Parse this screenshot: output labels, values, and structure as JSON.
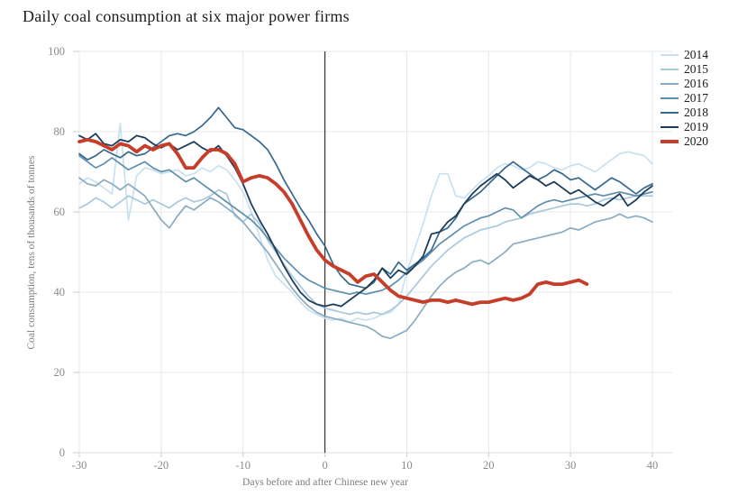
{
  "title": "Daily coal consumption at six major power firms",
  "chart_data": {
    "type": "line",
    "title": "Daily coal consumption at six major power firms",
    "xlabel": "Days before and after Chinese new year",
    "ylabel": "Coal consumption, tens of thousands of tonnes",
    "xlim": [
      -30,
      40
    ],
    "ylim": [
      0,
      100
    ],
    "x_ticks": [
      -30,
      -20,
      -10,
      0,
      10,
      20,
      30,
      40
    ],
    "y_ticks": [
      0,
      20,
      40,
      60,
      80,
      100
    ],
    "grid": true,
    "legend_position": "top-right",
    "event_line_x": 0,
    "x_start": -30,
    "x_step": 1,
    "series": [
      {
        "name": "2014",
        "color": "#c9e1ef",
        "width": 1.7,
        "values": [
          67,
          68.5,
          67.5,
          66,
          64.5,
          82,
          58,
          69,
          71,
          70.5,
          69.5,
          70,
          70.5,
          69,
          69.5,
          71,
          70,
          71.5,
          70.5,
          68,
          65,
          60,
          54,
          48,
          44,
          42,
          40,
          37.5,
          35.5,
          34.5,
          33.5,
          33,
          33.5,
          32.5,
          33.5,
          33,
          33.5,
          34.5,
          35,
          37,
          45,
          51,
          57,
          64,
          69.5,
          69.5,
          64,
          63.5,
          65.5,
          67.5,
          69,
          71,
          72,
          71.5,
          70.5,
          71,
          72.5,
          72,
          71,
          70.5,
          71.5,
          72,
          71,
          70,
          71.5,
          73,
          74.5,
          75,
          74.5,
          74,
          72
        ]
      },
      {
        "name": "2015",
        "color": "#a9c8dc",
        "width": 1.7,
        "values": [
          61,
          62,
          63.5,
          62.5,
          61,
          62.5,
          64,
          63,
          62,
          63,
          62,
          61,
          62.5,
          63.5,
          62.5,
          63,
          64,
          65.5,
          64.5,
          59,
          57.5,
          59.5,
          57,
          53,
          50,
          47,
          44,
          41.5,
          39,
          37,
          36,
          35.5,
          35,
          34.5,
          35,
          34.5,
          35,
          34.5,
          35.5,
          37,
          39,
          41.5,
          44,
          46.5,
          48.5,
          50.5,
          52,
          53.5,
          54.5,
          55.5,
          56,
          56.5,
          57.5,
          58,
          58.5,
          59.5,
          60,
          60.5,
          61,
          61.5,
          62,
          62,
          61.5,
          62,
          63,
          63.5,
          63,
          63.5,
          64,
          64,
          64
        ]
      },
      {
        "name": "2016",
        "color": "#8aabc0",
        "width": 1.7,
        "values": [
          68.5,
          67,
          66.5,
          68,
          67,
          65.5,
          67,
          65.5,
          64,
          61,
          58,
          56,
          59,
          61.5,
          60.5,
          62,
          63.5,
          62.5,
          61,
          59.5,
          57.5,
          55,
          52.5,
          50,
          47,
          44,
          41,
          38.5,
          36.5,
          35,
          34,
          33.5,
          33,
          32.5,
          32,
          31.5,
          30.5,
          29,
          28.5,
          29.5,
          30.5,
          33,
          36,
          39,
          41.5,
          43.5,
          45,
          46,
          47.5,
          48,
          47,
          48.5,
          50,
          52,
          52.5,
          53,
          53.5,
          54,
          54.5,
          55,
          56,
          55.5,
          56.5,
          57.5,
          58,
          58.5,
          59.5,
          58.5,
          59,
          58.5,
          57.5
        ]
      },
      {
        "name": "2017",
        "color": "#5f8fae",
        "width": 1.7,
        "values": [
          74,
          72.5,
          71,
          72,
          73.5,
          72,
          70.5,
          71.5,
          72.5,
          71,
          70,
          70.5,
          69,
          67.5,
          68.5,
          67,
          65.5,
          64,
          62.5,
          61,
          59.5,
          58,
          56,
          53.5,
          51,
          48.5,
          46.5,
          44.5,
          43,
          42,
          41,
          40.5,
          40,
          39.5,
          40,
          39.5,
          40,
          40.5,
          41.5,
          43,
          45,
          46.5,
          48,
          50,
          52,
          53.5,
          55,
          56.5,
          57.5,
          58.5,
          59,
          60,
          61,
          60.5,
          58.5,
          60,
          61.5,
          62.5,
          63,
          62.5,
          63,
          63.5,
          64,
          64.5,
          64,
          64.5,
          65,
          64.5,
          64,
          64.5,
          65
        ]
      },
      {
        "name": "2018",
        "color": "#35688e",
        "width": 1.7,
        "values": [
          74.5,
          73,
          74,
          75.5,
          74.5,
          73.5,
          75,
          74,
          74.5,
          76,
          77.5,
          79,
          79.5,
          79,
          80,
          81.5,
          83.5,
          86,
          83.5,
          81,
          80.5,
          79,
          77.5,
          75.5,
          72,
          68,
          64.5,
          61,
          58,
          54.5,
          51.5,
          47,
          44,
          42,
          41.5,
          41,
          42.5,
          46,
          44.5,
          47.5,
          45.5,
          47,
          48.5,
          50.5,
          55,
          56,
          58.5,
          62,
          63.5,
          65,
          67,
          69,
          71,
          72.5,
          71,
          69.5,
          68,
          69,
          70.5,
          69.5,
          68,
          68.5,
          67,
          65.5,
          67,
          68.5,
          67.5,
          66,
          64.5,
          66,
          67
        ]
      },
      {
        "name": "2019",
        "color": "#1e3d5a",
        "width": 1.8,
        "values": [
          79,
          78,
          79.5,
          77,
          76.5,
          78,
          77.5,
          79,
          78.5,
          77,
          76,
          77,
          75.5,
          76.5,
          77.5,
          76,
          75,
          76.5,
          74,
          71,
          67,
          62,
          58,
          54.5,
          50.5,
          46.5,
          43,
          40,
          38,
          37,
          36.5,
          37,
          36.5,
          38,
          39.5,
          41,
          43,
          46,
          43.5,
          45.5,
          44.5,
          46.5,
          49,
          54.5,
          55,
          57.5,
          59,
          62,
          64.5,
          66.5,
          68,
          69.5,
          68,
          66,
          67.5,
          69,
          68,
          66.5,
          67.5,
          66,
          64.5,
          65.5,
          64,
          62.5,
          61.5,
          63,
          64.5,
          61.5,
          63,
          65,
          66.5
        ]
      },
      {
        "name": "2020",
        "color": "#c63d2a",
        "width": 3.8,
        "values": [
          77.5,
          78,
          77.5,
          76.5,
          75.5,
          77,
          76.5,
          75,
          76.5,
          75.5,
          76.5,
          77,
          74.5,
          71,
          71,
          73.5,
          75.5,
          75.5,
          74.5,
          72,
          67.5,
          68.5,
          69,
          68.5,
          67,
          65,
          62,
          58,
          54,
          50.5,
          48,
          46.5,
          45.5,
          44.5,
          42.5,
          44,
          44.5,
          42.5,
          40.5,
          39,
          38.5,
          38,
          37.5,
          38,
          38,
          37.5,
          38,
          37.5,
          37,
          37.5,
          37.5,
          38,
          38.5,
          38,
          38.5,
          39.5,
          42,
          42.5,
          42,
          42,
          42.5,
          43,
          42
        ]
      }
    ]
  },
  "colors": {
    "grid": "#e4e8eb",
    "axis_line": "#d9dde0",
    "tick_mark": "#c9cdd1",
    "tick_text": "#8a8a8a",
    "axis_title_text": "#7d7d7d",
    "title_text": "#1c1c1c",
    "event_line": "#333333",
    "background": "#ffffff"
  }
}
